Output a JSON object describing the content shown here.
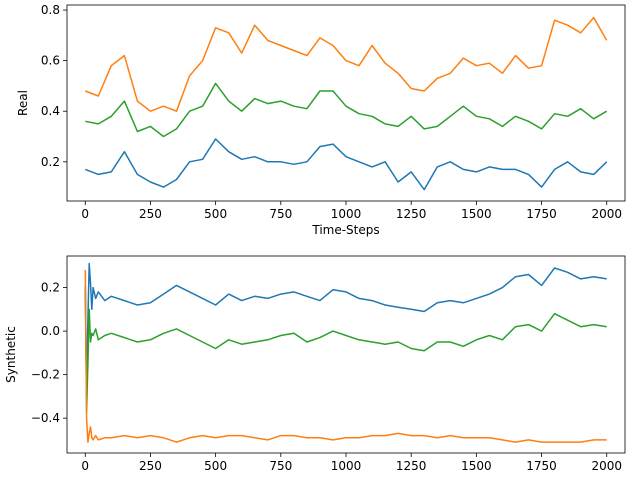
{
  "chart_data": [
    {
      "type": "line",
      "title": "",
      "xlabel": "Time-Steps",
      "ylabel": "Real",
      "xlim": [
        -70,
        2070
      ],
      "ylim": [
        0.045,
        0.82
      ],
      "xticks": [
        0,
        250,
        500,
        750,
        1000,
        1250,
        1500,
        1750,
        2000
      ],
      "xtick_labels": [
        "0",
        "250",
        "500",
        "750",
        "1000",
        "1250",
        "1500",
        "1750",
        "2000"
      ],
      "yticks": [
        0.2,
        0.4,
        0.6,
        0.8
      ],
      "ytick_labels": [
        "0.2",
        "0.4",
        "0.6",
        "0.8"
      ],
      "grid": false,
      "x": [
        0,
        50,
        100,
        150,
        200,
        250,
        300,
        350,
        400,
        450,
        500,
        550,
        600,
        650,
        700,
        750,
        800,
        850,
        900,
        950,
        1000,
        1050,
        1100,
        1150,
        1200,
        1250,
        1300,
        1350,
        1400,
        1450,
        1500,
        1550,
        1600,
        1650,
        1700,
        1750,
        1800,
        1850,
        1900,
        1950,
        2000
      ],
      "series": [
        {
          "color": "#ff7f0e",
          "values": [
            0.48,
            0.46,
            0.58,
            0.62,
            0.44,
            0.4,
            0.42,
            0.4,
            0.54,
            0.6,
            0.73,
            0.71,
            0.63,
            0.74,
            0.68,
            0.66,
            0.64,
            0.62,
            0.69,
            0.66,
            0.6,
            0.58,
            0.66,
            0.59,
            0.55,
            0.49,
            0.48,
            0.53,
            0.55,
            0.61,
            0.58,
            0.59,
            0.55,
            0.62,
            0.57,
            0.58,
            0.76,
            0.74,
            0.71,
            0.77,
            0.68
          ]
        },
        {
          "color": "#2ca02c",
          "values": [
            0.36,
            0.35,
            0.38,
            0.44,
            0.32,
            0.34,
            0.3,
            0.33,
            0.4,
            0.42,
            0.51,
            0.44,
            0.4,
            0.45,
            0.43,
            0.44,
            0.42,
            0.41,
            0.48,
            0.48,
            0.42,
            0.39,
            0.38,
            0.35,
            0.34,
            0.38,
            0.33,
            0.34,
            0.38,
            0.42,
            0.38,
            0.37,
            0.34,
            0.38,
            0.36,
            0.33,
            0.39,
            0.38,
            0.41,
            0.37,
            0.4
          ]
        },
        {
          "color": "#1f77b4",
          "values": [
            0.17,
            0.15,
            0.16,
            0.24,
            0.15,
            0.12,
            0.1,
            0.13,
            0.2,
            0.21,
            0.29,
            0.24,
            0.21,
            0.22,
            0.2,
            0.2,
            0.19,
            0.2,
            0.26,
            0.27,
            0.22,
            0.2,
            0.18,
            0.2,
            0.12,
            0.16,
            0.09,
            0.18,
            0.2,
            0.17,
            0.16,
            0.18,
            0.17,
            0.17,
            0.15,
            0.1,
            0.17,
            0.2,
            0.16,
            0.15,
            0.2
          ]
        }
      ]
    },
    {
      "type": "line",
      "title": "",
      "xlabel": "",
      "ylabel": "Synthetic",
      "xlim": [
        -70,
        2070
      ],
      "ylim": [
        -0.56,
        0.345
      ],
      "xticks": [
        0,
        250,
        500,
        750,
        1000,
        1250,
        1500,
        1750,
        2000
      ],
      "xtick_labels": [
        "0",
        "250",
        "500",
        "750",
        "1000",
        "1250",
        "1500",
        "1750",
        "2000"
      ],
      "yticks": [
        -0.4,
        -0.2,
        0.0,
        0.2
      ],
      "ytick_labels": [
        "−0.4",
        "−0.2",
        "0.0",
        "0.2"
      ],
      "grid": false,
      "x": [
        0,
        5,
        10,
        15,
        20,
        25,
        30,
        40,
        50,
        75,
        100,
        150,
        200,
        250,
        300,
        350,
        400,
        450,
        500,
        550,
        600,
        650,
        700,
        750,
        800,
        850,
        900,
        950,
        1000,
        1050,
        1100,
        1150,
        1200,
        1250,
        1300,
        1350,
        1400,
        1450,
        1500,
        1550,
        1600,
        1650,
        1700,
        1750,
        1800,
        1850,
        1900,
        1950,
        2000
      ],
      "series": [
        {
          "color": "#1f77b4",
          "values": [
            0.21,
            -0.3,
            0.05,
            0.31,
            0.22,
            0.1,
            0.2,
            0.15,
            0.18,
            0.14,
            0.16,
            0.14,
            0.12,
            0.13,
            0.17,
            0.21,
            0.18,
            0.15,
            0.12,
            0.17,
            0.14,
            0.16,
            0.15,
            0.17,
            0.18,
            0.16,
            0.14,
            0.19,
            0.18,
            0.15,
            0.14,
            0.12,
            0.11,
            0.1,
            0.09,
            0.13,
            0.14,
            0.13,
            0.15,
            0.17,
            0.2,
            0.25,
            0.26,
            0.21,
            0.29,
            0.27,
            0.24,
            0.25,
            0.24
          ]
        },
        {
          "color": "#2ca02c",
          "values": [
            0.2,
            -0.37,
            -0.15,
            0.1,
            -0.05,
            -0.01,
            -0.02,
            0.01,
            -0.04,
            -0.02,
            -0.01,
            -0.03,
            -0.05,
            -0.04,
            -0.01,
            0.01,
            -0.02,
            -0.05,
            -0.08,
            -0.04,
            -0.06,
            -0.05,
            -0.04,
            -0.02,
            -0.01,
            -0.05,
            -0.03,
            0.0,
            -0.02,
            -0.04,
            -0.05,
            -0.06,
            -0.05,
            -0.08,
            -0.09,
            -0.05,
            -0.05,
            -0.07,
            -0.04,
            -0.02,
            -0.04,
            0.02,
            0.03,
            0.0,
            0.08,
            0.05,
            0.02,
            0.03,
            0.02
          ]
        },
        {
          "color": "#ff7f0e",
          "values": [
            0.28,
            -0.4,
            -0.51,
            -0.47,
            -0.44,
            -0.49,
            -0.5,
            -0.48,
            -0.5,
            -0.49,
            -0.49,
            -0.48,
            -0.49,
            -0.48,
            -0.49,
            -0.51,
            -0.49,
            -0.48,
            -0.49,
            -0.48,
            -0.48,
            -0.49,
            -0.5,
            -0.48,
            -0.48,
            -0.49,
            -0.49,
            -0.5,
            -0.49,
            -0.49,
            -0.48,
            -0.48,
            -0.47,
            -0.48,
            -0.48,
            -0.49,
            -0.48,
            -0.49,
            -0.49,
            -0.49,
            -0.5,
            -0.51,
            -0.5,
            -0.51,
            -0.51,
            -0.51,
            -0.51,
            -0.5,
            -0.5
          ]
        }
      ]
    }
  ]
}
